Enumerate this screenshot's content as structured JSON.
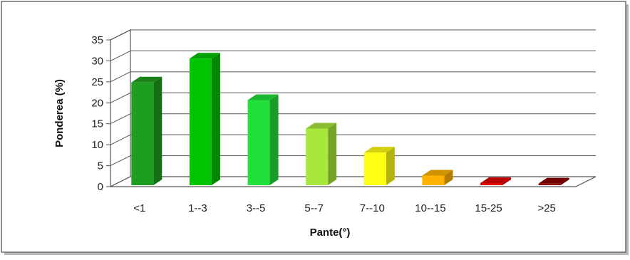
{
  "chart_data": {
    "type": "bar",
    "categories": [
      "<1",
      "1--3",
      "3--5",
      "5--7",
      "7--10",
      "10--15",
      "15-25",
      ">25"
    ],
    "values": [
      24.5,
      30.2,
      20.3,
      13.5,
      7.8,
      2.3,
      0.5,
      0.4
    ],
    "colors": [
      "#1e9e1e",
      "#00c400",
      "#22e03c",
      "#a8e83a",
      "#ffff14",
      "#ffb300",
      "#e00000",
      "#8c0000"
    ],
    "xlabel": "Pante(°)",
    "ylabel": "Ponderea (%)",
    "ylim": [
      0,
      35
    ],
    "yticks": [
      0,
      5,
      10,
      15,
      20,
      25,
      30,
      35
    ],
    "grid": true,
    "style": "3d-column"
  }
}
